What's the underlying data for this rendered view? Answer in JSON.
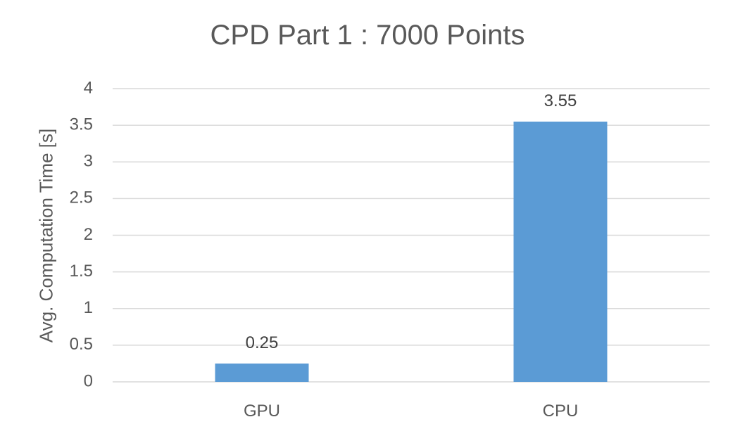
{
  "chart_data": {
    "type": "bar",
    "title": "CPD Part 1 : 7000 Points",
    "xlabel": "",
    "ylabel": "Avg. Computation Time [s]",
    "categories": [
      "GPU",
      "CPU"
    ],
    "values": [
      0.25,
      3.55
    ],
    "data_labels": [
      "0.25",
      "3.55"
    ],
    "yticks": [
      "0",
      "0.5",
      "1",
      "1.5",
      "2",
      "2.5",
      "3",
      "3.5",
      "4"
    ],
    "ylim": [
      0,
      4
    ],
    "grid": true,
    "legend": "none",
    "colors": {
      "bar": "#5b9bd5",
      "grid": "#d9d9d9",
      "text": "#595959"
    }
  }
}
